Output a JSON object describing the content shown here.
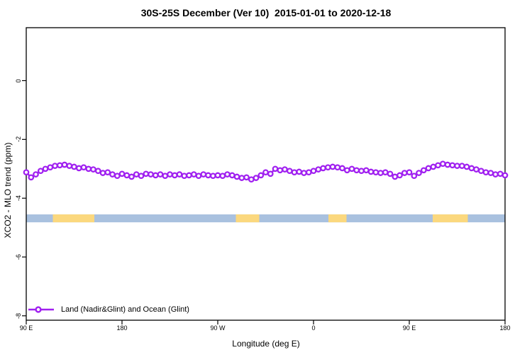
{
  "page": {
    "background": "#ffffff"
  },
  "chart_data": {
    "type": "line",
    "title": "30S-25S December (Ver 10)  2015-01-01 to 2020-12-18",
    "xlabel": "Longitude (deg E)",
    "ylabel": "XCO2 - MLO trend (ppm)",
    "xlim": [
      90,
      540
    ],
    "ylim": [
      -8.15,
      1.8
    ],
    "grid": "off",
    "legend_position": "bottom-left-inside",
    "frame_color": "#000000",
    "x_ticks": [
      {
        "value": 90,
        "label": "90 E"
      },
      {
        "value": 180,
        "label": "180"
      },
      {
        "value": 270,
        "label": "90 W"
      },
      {
        "value": 360,
        "label": "0"
      },
      {
        "value": 450,
        "label": "90 E"
      },
      {
        "value": 540,
        "label": "180"
      }
    ],
    "y_ticks": [
      {
        "value": 0,
        "label": "0"
      },
      {
        "value": -2,
        "label": "-2"
      },
      {
        "value": -4,
        "label": "-4"
      },
      {
        "value": -6,
        "label": "-6"
      },
      {
        "value": -8,
        "label": "-8"
      }
    ],
    "x_start": 90,
    "x_step": 4.5,
    "series": [
      {
        "name": "Land (Nadir&Glint) and Ocean (Glint)",
        "color": "#A020F0",
        "marker": "open-circle",
        "values": [
          -3.12,
          -3.29,
          -3.19,
          -3.07,
          -3.0,
          -2.95,
          -2.9,
          -2.88,
          -2.86,
          -2.9,
          -2.93,
          -2.98,
          -2.95,
          -3.0,
          -3.02,
          -3.07,
          -3.14,
          -3.12,
          -3.19,
          -3.24,
          -3.17,
          -3.22,
          -3.27,
          -3.19,
          -3.24,
          -3.17,
          -3.19,
          -3.22,
          -3.19,
          -3.24,
          -3.19,
          -3.22,
          -3.19,
          -3.24,
          -3.22,
          -3.19,
          -3.24,
          -3.19,
          -3.22,
          -3.24,
          -3.22,
          -3.24,
          -3.19,
          -3.22,
          -3.27,
          -3.31,
          -3.29,
          -3.36,
          -3.31,
          -3.22,
          -3.12,
          -3.17,
          -3.0,
          -3.05,
          -3.02,
          -3.07,
          -3.12,
          -3.1,
          -3.14,
          -3.12,
          -3.07,
          -3.02,
          -2.98,
          -2.95,
          -2.93,
          -2.95,
          -2.98,
          -3.05,
          -3.0,
          -3.05,
          -3.07,
          -3.05,
          -3.1,
          -3.12,
          -3.14,
          -3.12,
          -3.17,
          -3.27,
          -3.22,
          -3.14,
          -3.12,
          -3.24,
          -3.14,
          -3.05,
          -2.98,
          -2.93,
          -2.88,
          -2.83,
          -2.86,
          -2.88,
          -2.9,
          -2.9,
          -2.93,
          -2.98,
          -3.02,
          -3.07,
          -3.12,
          -3.14,
          -3.19,
          -3.17,
          -3.22
        ]
      }
    ],
    "band": {
      "value_range": [
        -4.55,
        -4.82
      ],
      "base_color": "#A9C1DF",
      "highlight_color": "#FBD87E",
      "highlight_segments_lon": [
        [
          115,
          154
        ],
        [
          287,
          309
        ],
        [
          374,
          391
        ],
        [
          472,
          505
        ]
      ]
    }
  }
}
